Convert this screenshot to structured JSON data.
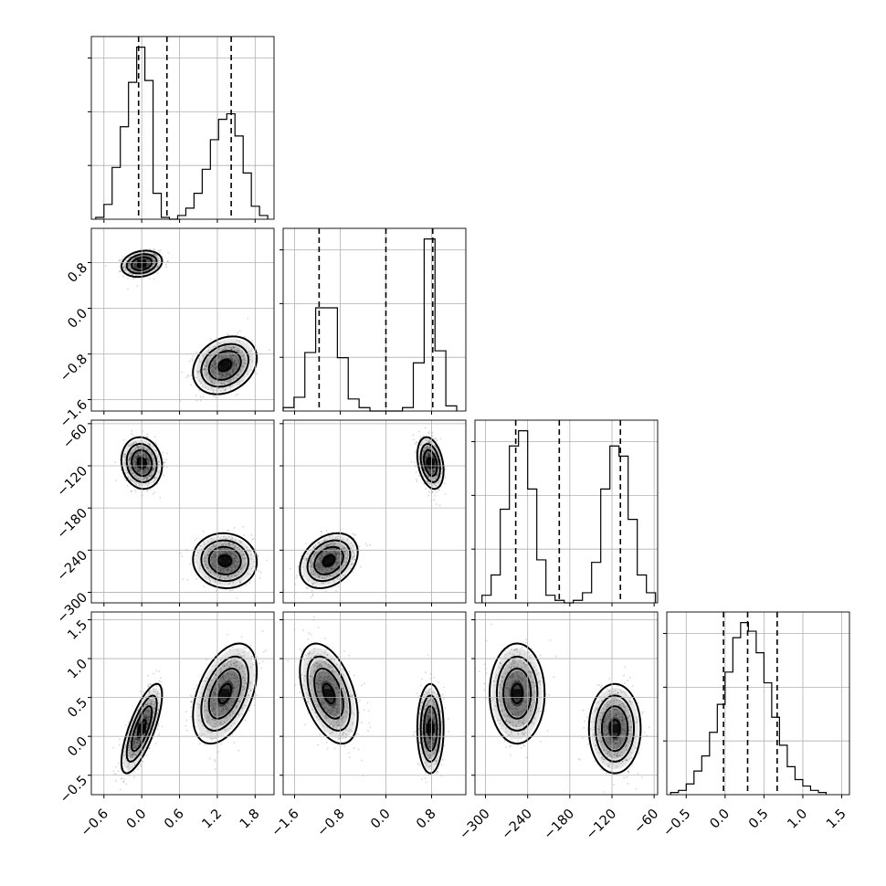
{
  "chart_data": {
    "type": "corner",
    "parameters": [
      {
        "ticks": [
          -0.6,
          0.0,
          0.6,
          1.2,
          1.8
        ],
        "tick_labels": [
          "−0.6",
          "0.0",
          "0.6",
          "1.2",
          "1.8"
        ],
        "range": [
          -0.8,
          2.1
        ],
        "quantiles": [
          -0.05,
          0.4,
          1.42
        ],
        "modes": [
          {
            "mean": 0.0,
            "sd": 0.14,
            "weight": 0.5
          },
          {
            "mean": 1.32,
            "sd": 0.22,
            "weight": 0.5
          }
        ],
        "histogram": {
          "edges": [
            -0.73,
            -0.6,
            -0.47,
            -0.34,
            -0.21,
            -0.08,
            0.05,
            0.18,
            0.31,
            0.44,
            0.57,
            0.7,
            0.83,
            0.96,
            1.09,
            1.22,
            1.35,
            1.48,
            1.61,
            1.74,
            1.87,
            2.0
          ],
          "counts": [
            1,
            8,
            28,
            50,
            74,
            93,
            75,
            14,
            1,
            0,
            2,
            6,
            14,
            27,
            43,
            54,
            57,
            45,
            25,
            7,
            2
          ]
        }
      },
      {
        "ticks": [
          -1.6,
          -0.8,
          0.0,
          0.8
        ],
        "tick_labels": [
          "−1.6",
          "−0.8",
          "0.0",
          "0.8"
        ],
        "range": [
          -1.8,
          1.4
        ],
        "quantiles": [
          -1.17,
          0.0,
          0.82
        ],
        "modes": [
          {
            "mean": 0.78,
            "sd": 0.1,
            "weight": 0.5
          },
          {
            "mean": -1.0,
            "sd": 0.22,
            "weight": 0.5
          }
        ],
        "histogram": {
          "edges": [
            -1.8,
            -1.61,
            -1.42,
            -1.23,
            -1.04,
            -0.85,
            -0.66,
            -0.47,
            -0.28,
            -0.09,
            0.1,
            0.29,
            0.48,
            0.67,
            0.86,
            1.05,
            1.24
          ],
          "counts": [
            2,
            8,
            34,
            60,
            60,
            31,
            7,
            2,
            0,
            0,
            0,
            2,
            28,
            100,
            35,
            3
          ]
        }
      },
      {
        "ticks": [
          -300,
          -240,
          -180,
          -120,
          -60
        ],
        "tick_labels": [
          "−300",
          "−240",
          "−180",
          "−120",
          "−60"
        ],
        "range": [
          -315,
          -55
        ],
        "quantiles": [
          -257,
          -195,
          -108
        ],
        "modes": [
          {
            "mean": -116,
            "sd": 16,
            "weight": 0.5
          },
          {
            "mean": -255,
            "sd": 17,
            "weight": 0.5
          }
        ],
        "histogram": {
          "edges": [
            -305,
            -292,
            -279,
            -266,
            -253,
            -240,
            -227,
            -214,
            -201,
            -188,
            -175,
            -162,
            -149,
            -136,
            -123,
            -110,
            -97,
            -84,
            -71,
            -58
          ],
          "counts": [
            3,
            11,
            37,
            62,
            68,
            45,
            17,
            3,
            1,
            0,
            1,
            4,
            16,
            45,
            62,
            58,
            33,
            11,
            4
          ]
        }
      },
      {
        "ticks": [
          -0.5,
          0.0,
          0.5,
          1.0,
          1.5
        ],
        "tick_labels": [
          "−0.5",
          "0.0",
          "0.5",
          "1.0",
          "1.5"
        ],
        "range": [
          -0.75,
          1.6
        ],
        "quantiles": [
          -0.02,
          0.29,
          0.67
        ],
        "modes": [
          {
            "mean": 0.3,
            "sd": 0.32,
            "weight": 1.0
          }
        ],
        "histogram": {
          "edges": [
            -0.7,
            -0.6,
            -0.5,
            -0.4,
            -0.3,
            -0.2,
            -0.1,
            0.0,
            0.1,
            0.2,
            0.3,
            0.4,
            0.5,
            0.6,
            0.7,
            0.8,
            0.9,
            1.0,
            1.1,
            1.2,
            1.3
          ],
          "counts": [
            1,
            2,
            5,
            11,
            18,
            29,
            42,
            57,
            73,
            80,
            76,
            66,
            52,
            36,
            23,
            13,
            7,
            4,
            2,
            1
          ]
        }
      }
    ],
    "pairs": [
      {
        "row": 1,
        "col": 0,
        "modes": [
          {
            "mx": 0.0,
            "my": 0.78,
            "sx": 0.14,
            "sy": 0.1,
            "rho": 0.2
          },
          {
            "mx": 1.32,
            "my": -1.0,
            "sx": 0.22,
            "sy": 0.22,
            "rho": 0.25
          }
        ]
      },
      {
        "row": 2,
        "col": 0,
        "modes": [
          {
            "mx": 0.0,
            "my": -116,
            "sx": 0.14,
            "sy": 16,
            "rho": -0.1
          },
          {
            "mx": 1.32,
            "my": -255,
            "sx": 0.22,
            "sy": 17,
            "rho": -0.05
          }
        ]
      },
      {
        "row": 2,
        "col": 1,
        "modes": [
          {
            "mx": 0.78,
            "my": -116,
            "sx": 0.1,
            "sy": 16,
            "rho": -0.3
          },
          {
            "mx": -1.0,
            "my": -255,
            "sx": 0.22,
            "sy": 17,
            "rho": 0.3
          }
        ]
      },
      {
        "row": 3,
        "col": 0,
        "modes": [
          {
            "mx": 0.0,
            "my": 0.1,
            "sx": 0.14,
            "sy": 0.25,
            "rho": 0.75
          },
          {
            "mx": 1.32,
            "my": 0.55,
            "sx": 0.22,
            "sy": 0.28,
            "rho": 0.45
          }
        ]
      },
      {
        "row": 3,
        "col": 1,
        "modes": [
          {
            "mx": 0.78,
            "my": 0.1,
            "sx": 0.1,
            "sy": 0.25,
            "rho": 0.0
          },
          {
            "mx": -1.0,
            "my": 0.55,
            "sx": 0.22,
            "sy": 0.28,
            "rho": -0.45
          }
        ]
      },
      {
        "row": 3,
        "col": 2,
        "modes": [
          {
            "mx": -116,
            "my": 0.1,
            "sx": 16,
            "sy": 0.25,
            "rho": 0.0
          },
          {
            "mx": -255,
            "my": 0.55,
            "sx": 17,
            "sy": 0.28,
            "rho": 0.0
          }
        ]
      }
    ],
    "title": "",
    "grid": true
  }
}
